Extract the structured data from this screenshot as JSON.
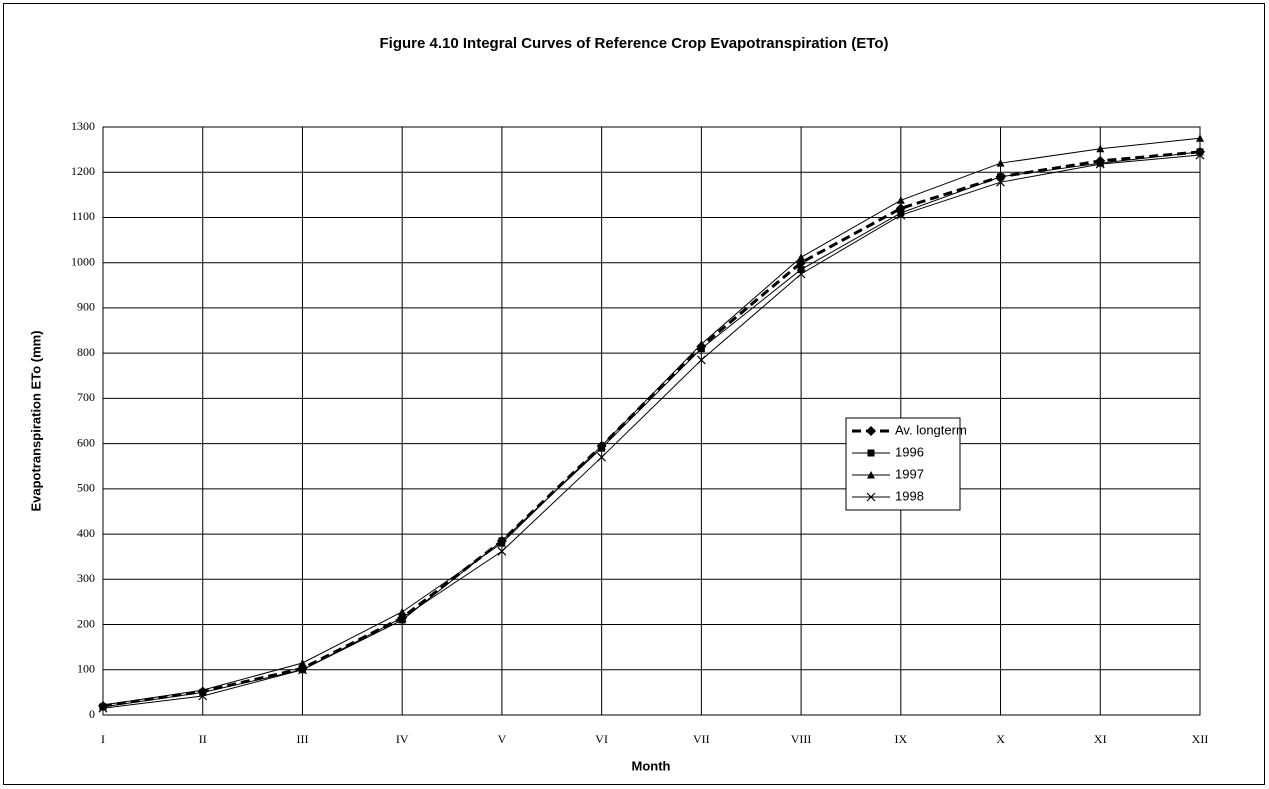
{
  "chart_data": {
    "type": "line",
    "title": "Figure 4.10  Integral Curves of Reference Crop Evapotranspiration (ETo)",
    "x_label": "Month",
    "y_label": "Evapotranspiration ETo (mm)",
    "categories": [
      "I",
      "II",
      "III",
      "IV",
      "V",
      "VI",
      "VII",
      "VIII",
      "IX",
      "X",
      "XI",
      "XII"
    ],
    "series": [
      {
        "name": "Av. longterm",
        "color": "#000000",
        "marker": "diamond",
        "dashed": true,
        "values": [
          20,
          52,
          103,
          215,
          385,
          595,
          815,
          1000,
          1120,
          1190,
          1225,
          1245
        ]
      },
      {
        "name": "1996",
        "color": "#000000",
        "marker": "square",
        "values": [
          18,
          50,
          100,
          210,
          385,
          590,
          810,
          985,
          1110,
          1190,
          1220,
          1245
        ]
      },
      {
        "name": "1997",
        "color": "#000000",
        "marker": "triangle",
        "values": [
          22,
          55,
          115,
          228,
          380,
          595,
          820,
          1012,
          1138,
          1220,
          1252,
          1275
        ]
      },
      {
        "name": "1998",
        "color": "#000000",
        "marker": "x",
        "values": [
          15,
          42,
          100,
          215,
          362,
          570,
          785,
          975,
          1105,
          1178,
          1218,
          1238
        ]
      }
    ],
    "ylim": [
      0,
      1300
    ],
    "yticks": [
      0,
      100,
      200,
      300,
      400,
      500,
      600,
      700,
      800,
      900,
      1000,
      1100,
      1200,
      1300
    ],
    "grid": true,
    "legend": "right"
  }
}
